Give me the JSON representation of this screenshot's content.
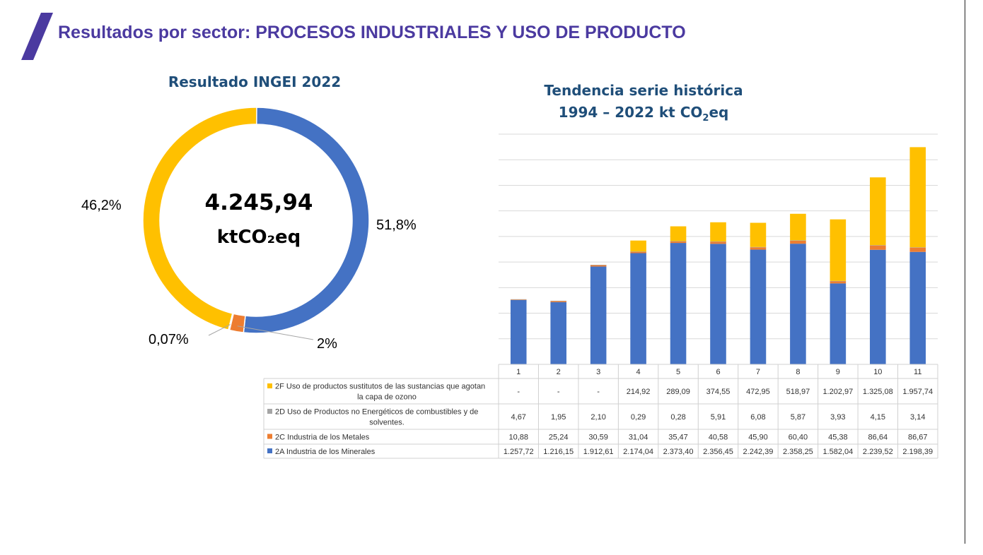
{
  "page": {
    "title": "Resultados por sector: PROCESOS INDUSTRIALES Y USO DE PRODUCTO",
    "accent_color": "#4b3aa0"
  },
  "donut": {
    "title": "Resultado INGEI 2022",
    "center_value": "4.245,94",
    "center_unit": "ktCO₂eq"
  },
  "trend": {
    "title_line1": "Tendencia serie histórica",
    "title_line2_prefix": "1994 – 2022 kt CO",
    "title_line2_sub": "2",
    "title_line2_suffix": "eq"
  },
  "chart_data": [
    {
      "type": "pie",
      "style": "donut",
      "title": "Resultado INGEI 2022",
      "center_text": "4.245,94 ktCO₂eq",
      "slices": [
        {
          "name": "2A Industria de los Minerales",
          "value": 51.8,
          "label": "51,8%",
          "color": "#4472c4"
        },
        {
          "name": "2C Industria de los Metales",
          "value": 2.0,
          "label": "2%",
          "color": "#ed7d31"
        },
        {
          "name": "2D Uso de Productos no Energéticos de combustibles y de solventes.",
          "value": 0.07,
          "label": "0,07%",
          "color": "#a5a5a5"
        },
        {
          "name": "2F Uso de productos sustitutos de las sustancias que agotan la capa de ozono",
          "value": 46.2,
          "label": "46,2%",
          "color": "#ffc000"
        }
      ]
    },
    {
      "type": "bar",
      "stacked": true,
      "title": "Tendencia serie histórica 1994 – 2022 kt CO2eq",
      "categories": [
        "1",
        "2",
        "3",
        "4",
        "5",
        "6",
        "7",
        "8",
        "9",
        "10",
        "11"
      ],
      "ylim": [
        0,
        4500
      ],
      "grid": true,
      "series": [
        {
          "name": "2A  Industria de los Minerales",
          "color": "#4472c4",
          "values": [
            1257.72,
            1216.15,
            1912.61,
            2174.04,
            2373.4,
            2356.45,
            2242.39,
            2358.25,
            1582.04,
            2239.52,
            2198.39
          ],
          "labels": [
            "1.257,72",
            "1.216,15",
            "1.912,61",
            "2.174,04",
            "2.373,40",
            "2.356,45",
            "2.242,39",
            "2.358,25",
            "1.582,04",
            "2.239,52",
            "2.198,39"
          ]
        },
        {
          "name": "2C  Industria de los Metales",
          "color": "#ed7d31",
          "values": [
            10.88,
            25.24,
            30.59,
            31.04,
            35.47,
            40.58,
            45.9,
            60.4,
            45.38,
            86.64,
            86.67
          ],
          "labels": [
            "10,88",
            "25,24",
            "30,59",
            "31,04",
            "35,47",
            "40,58",
            "45,90",
            "60,40",
            "45,38",
            "86,64",
            "86,67"
          ]
        },
        {
          "name": "2D  Uso de Productos no Energéticos de combustibles y de solventes.",
          "color": "#a5a5a5",
          "values": [
            4.67,
            1.95,
            2.1,
            0.29,
            0.28,
            5.91,
            6.08,
            5.87,
            3.93,
            4.15,
            3.14
          ],
          "labels": [
            "4,67",
            "1,95",
            "2,10",
            "0,29",
            "0,28",
            "5,91",
            "6,08",
            "5,87",
            "3,93",
            "4,15",
            "3,14"
          ]
        },
        {
          "name": "2F  Uso de productos sustitutos de las sustancias que agotan la capa de ozono",
          "color": "#ffc000",
          "values": [
            0,
            0,
            0,
            214.92,
            289.09,
            374.55,
            472.95,
            518.97,
            1202.97,
            1325.08,
            1957.74
          ],
          "labels": [
            "-",
            "-",
            "-",
            "214,92",
            "289,09",
            "374,55",
            "472,95",
            "518,97",
            "1.202,97",
            "1.325,08",
            "1.957,74"
          ]
        }
      ],
      "table_row_order": [
        "2F  Uso de productos sustitutos de las sustancias que agotan la capa de ozono",
        "2D  Uso de Productos no Energéticos de combustibles y de solventes.",
        "2C  Industria de los Metales",
        "2A  Industria de los Minerales"
      ]
    }
  ]
}
